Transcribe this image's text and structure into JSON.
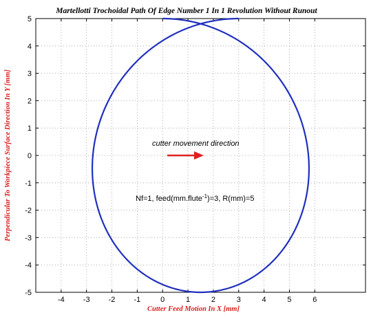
{
  "chart_data": {
    "type": "line",
    "title": "Martellotti Trochoidal Path Of Edge Number 1 In 1 Revolution Without Runout",
    "xlabel": "Cutter Feed Motion In X [mm]",
    "ylabel": "Perpendicular To Workpiece Surface Direction In Y [mm]",
    "xlim": [
      -5,
      8
    ],
    "ylim": [
      -5,
      5
    ],
    "xticks": [
      "-4",
      "-3",
      "-2",
      "-1",
      "0",
      "1",
      "2",
      "3",
      "4",
      "5",
      "6"
    ],
    "yticks": [
      "5",
      "4",
      "3",
      "2",
      "1",
      "0",
      "-1",
      "-2",
      "-3",
      "-4",
      "-5"
    ],
    "grid": true,
    "series": [
      {
        "color": "#1f2fbf",
        "curve": "trochoid",
        "radius_mm": 5,
        "feed_per_revolution_mm": 3,
        "revolutions": 1,
        "x_range": [
          -2.6,
          5.8
        ],
        "y_range": [
          -5,
          5
        ]
      }
    ],
    "annotations": {
      "direction_text": "cutter movement direction",
      "params_text_prefix": "Nf=1, feed(mm.flute",
      "params_text_sup": "-1",
      "params_text_suffix": ")=3, R(mm)=5",
      "arrow_color": "#e02020"
    }
  }
}
